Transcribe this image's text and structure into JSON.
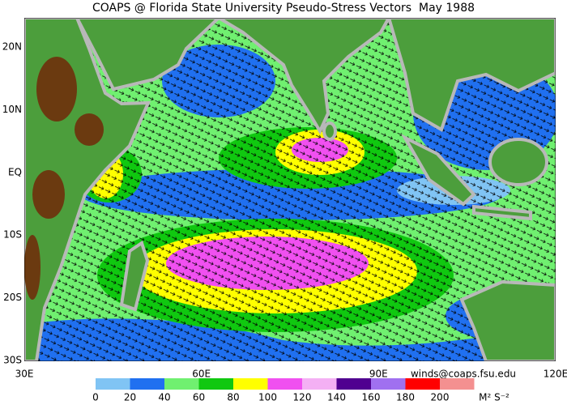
{
  "title": "COAPS @ Florida State University Pseudo-Stress Vectors  May 1988",
  "map": {
    "lat_labels": [
      "20N",
      "10N",
      "EQ",
      "10S",
      "20S",
      "30S"
    ],
    "lon_labels": [
      "30E",
      "60E",
      "90E",
      "120E"
    ]
  },
  "credit": "winds@coaps.fsu.edu",
  "colorbar": {
    "ticks": [
      0,
      20,
      40,
      60,
      80,
      100,
      120,
      140,
      160,
      180,
      200
    ],
    "colors": [
      "#80c4f4",
      "#2070f0",
      "#70f070",
      "#10c810",
      "#ffff00",
      "#f050f0",
      "#f4b0f4",
      "#500090",
      "#a070f0",
      "#ff0000",
      "#f49090"
    ],
    "unit": "M² S⁻²"
  }
}
